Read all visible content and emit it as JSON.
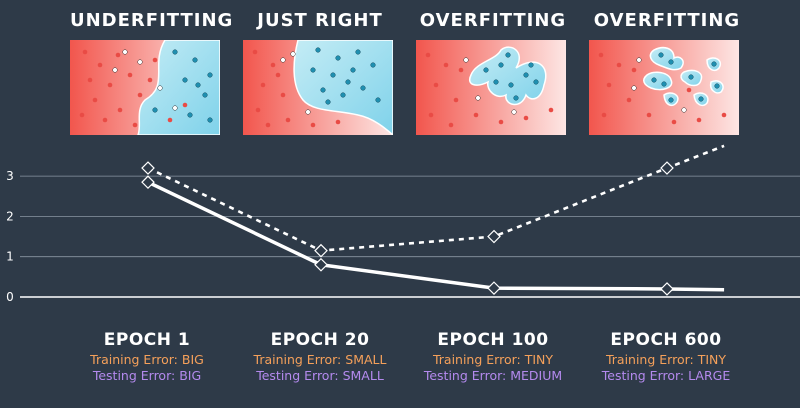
{
  "panels": [
    {
      "title": "UNDERFITTING"
    },
    {
      "title": "JUST RIGHT"
    },
    {
      "title": "OVERFITTING"
    },
    {
      "title": "OVERFITTING"
    }
  ],
  "epochs": [
    {
      "title": "EPOCH 1",
      "training_prefix": "Training Error:",
      "training_value": "BIG",
      "testing_prefix": "Testing Error:",
      "testing_value": "BIG"
    },
    {
      "title": "EPOCH 20",
      "training_prefix": "Training Error:",
      "training_value": "SMALL",
      "testing_prefix": "Testing Error:",
      "testing_value": "SMALL"
    },
    {
      "title": "EPOCH 100",
      "training_prefix": "Training Error:",
      "training_value": "TINY",
      "testing_prefix": "Testing Error:",
      "testing_value": "MEDIUM"
    },
    {
      "title": "EPOCH 600",
      "training_prefix": "Training Error:",
      "training_value": "TINY",
      "testing_prefix": "Testing Error:",
      "testing_value": "LARGE"
    }
  ],
  "chart_data": {
    "type": "line",
    "ylim": [
      0,
      3.5
    ],
    "yticks": [
      "0",
      "1",
      "2",
      "3"
    ],
    "grid": true,
    "series": [
      {
        "style": "solid",
        "x": [
          0,
          1,
          2,
          3,
          3.33
        ],
        "values": [
          2.85,
          0.8,
          0.22,
          0.2,
          0.18
        ],
        "markers": [
          0,
          1,
          2,
          3
        ]
      },
      {
        "style": "dashed",
        "x": [
          0,
          1,
          2,
          3,
          3.33
        ],
        "values": [
          3.2,
          1.15,
          1.5,
          3.2,
          3.75
        ],
        "markers": [
          0,
          1,
          2,
          3
        ]
      }
    ],
    "colors": {
      "line": "#ffffff",
      "grid": "#8a96a3",
      "training": "#f5a05a",
      "testing": "#b48aee"
    }
  }
}
